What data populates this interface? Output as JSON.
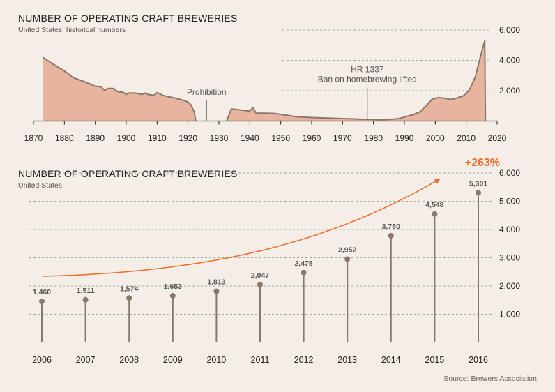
{
  "source": "Source: Brewers Association",
  "colors": {
    "area_fill": "#e7b4a0",
    "area_line": "#8a776b",
    "stem": "#8a776b",
    "grid": "#8f8f8f",
    "accent": "#ef6a2c",
    "text": "#222222"
  },
  "chart_data": [
    {
      "type": "area",
      "title": "NUMBER OF OPERATING CRAFT BREWERIES",
      "subtitle": "United States; historical numbers",
      "xlim": [
        1870,
        2020
      ],
      "ylim": [
        0,
        6000
      ],
      "x_ticks": [
        "1870",
        "1880",
        "1890",
        "1900",
        "1910",
        "1920",
        "1930",
        "1940",
        "1950",
        "1960",
        "1970",
        "1980",
        "1990",
        "2000",
        "2010",
        "2020"
      ],
      "y_ticks": [
        "2,000",
        "4,000",
        "6,000"
      ],
      "segments": [
        [
          [
            1873,
            4200
          ],
          [
            1876,
            3800
          ],
          [
            1880,
            3300
          ],
          [
            1883,
            2850
          ],
          [
            1887,
            2550
          ],
          [
            1890,
            2300
          ],
          [
            1892,
            2250
          ],
          [
            1893,
            2000
          ],
          [
            1894,
            2150
          ],
          [
            1896,
            2150
          ],
          [
            1897,
            1950
          ],
          [
            1899,
            1900
          ],
          [
            1900,
            1750
          ],
          [
            1901,
            1850
          ],
          [
            1903,
            1850
          ],
          [
            1905,
            1750
          ],
          [
            1906,
            1850
          ],
          [
            1907,
            1750
          ],
          [
            1909,
            1700
          ],
          [
            1910,
            1880
          ],
          [
            1912,
            1680
          ],
          [
            1915,
            1550
          ],
          [
            1918,
            1400
          ],
          [
            1920,
            1250
          ],
          [
            1921,
            1050
          ],
          [
            1922,
            600
          ],
          [
            1922.5,
            0
          ]
        ],
        [
          [
            1932.5,
            0
          ],
          [
            1934,
            800
          ],
          [
            1937,
            730
          ],
          [
            1940,
            650
          ],
          [
            1941,
            900
          ],
          [
            1942,
            520
          ],
          [
            1945,
            520
          ],
          [
            1948,
            500
          ],
          [
            1952,
            380
          ],
          [
            1955,
            280
          ],
          [
            1960,
            230
          ],
          [
            1965,
            200
          ],
          [
            1970,
            160
          ],
          [
            1975,
            130
          ],
          [
            1980,
            100
          ],
          [
            1983,
            80
          ],
          [
            1985,
            100
          ],
          [
            1988,
            150
          ],
          [
            1990,
            260
          ],
          [
            1993,
            430
          ],
          [
            1995,
            600
          ],
          [
            1997,
            1000
          ],
          [
            1999,
            1450
          ],
          [
            2001,
            1550
          ],
          [
            2003,
            1500
          ],
          [
            2005,
            1420
          ],
          [
            2007,
            1511
          ],
          [
            2009,
            1653
          ],
          [
            2010,
            1813
          ],
          [
            2011,
            2047
          ],
          [
            2012,
            2475
          ],
          [
            2013,
            2952
          ],
          [
            2014,
            3780
          ],
          [
            2015,
            4548
          ],
          [
            2016,
            5301
          ],
          [
            2016.2,
            0
          ]
        ]
      ],
      "annotations": [
        {
          "x": 1926,
          "y_top": 1360,
          "lines": [
            "Prohibition"
          ]
        },
        {
          "x": 1978,
          "y_top": 2200,
          "lines": [
            "HR 1337",
            "Ban on homebrewing lifted"
          ]
        }
      ]
    },
    {
      "type": "lollipop",
      "title": "NUMBER OF OPERATING CRAFT BREWERIES",
      "subtitle": "United States",
      "categories": [
        "2006",
        "2007",
        "2008",
        "2009",
        "2010",
        "2011",
        "2012",
        "2013",
        "2014",
        "2015",
        "2016"
      ],
      "values": [
        1460,
        1511,
        1574,
        1653,
        1813,
        2047,
        2475,
        2952,
        3780,
        4548,
        5301
      ],
      "labels": [
        "1,460",
        "1,511",
        "1,574",
        "1,653",
        "1,813",
        "2,047",
        "2,475",
        "2,952",
        "3,780",
        "4,548",
        "5,301"
      ],
      "ylim": [
        0,
        6000
      ],
      "y_ticks": [
        "1,000",
        "2,000",
        "3,000",
        "4,000",
        "5,000",
        "6,000"
      ],
      "growth_label": "+263%"
    }
  ]
}
